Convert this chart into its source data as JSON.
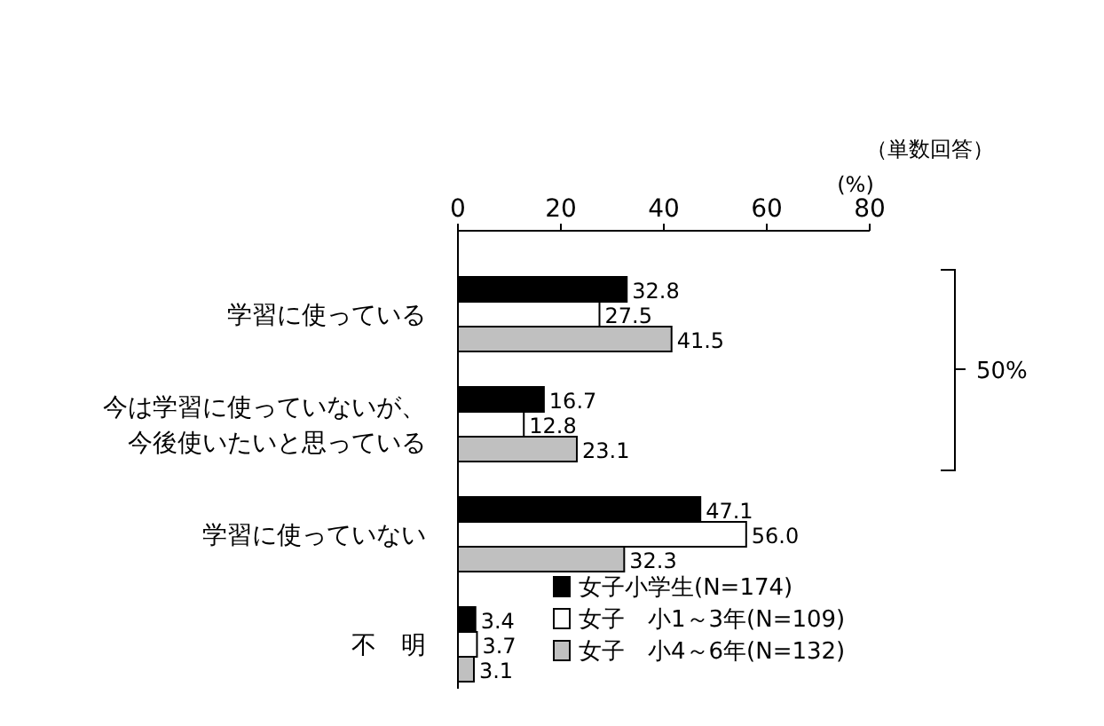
{
  "chart_data": {
    "type": "bar",
    "orientation": "horizontal",
    "categories": [
      "学習に使っている",
      "今は学習に使っていないが、今後使いたいと思っている",
      "学習に使っていない",
      "不　明"
    ],
    "series": [
      {
        "name": "女子小学生(N=174)",
        "color": "#000000",
        "values": [
          32.8,
          16.7,
          47.1,
          3.4
        ],
        "value_labels": [
          "32.8",
          "16.7",
          "47.1",
          "3.4"
        ]
      },
      {
        "name": "女子　小1～3年(N=109)",
        "color": "#ffffff",
        "values": [
          27.5,
          12.8,
          56.0,
          3.7
        ],
        "value_labels": [
          "27.5",
          "12.8",
          "56.0",
          "3.7"
        ]
      },
      {
        "name": "女子　小4～6年(N=132)",
        "color": "#c0c0c0",
        "values": [
          41.5,
          23.1,
          32.3,
          3.1
        ],
        "value_labels": [
          "41.5",
          "23.1",
          "32.3",
          "3.1"
        ]
      }
    ],
    "xlim": [
      0,
      80
    ],
    "xticks": [
      0,
      20,
      40,
      60,
      80
    ],
    "xlabel": "(%)",
    "legend": "bottom right",
    "annotations": [
      "（単数回答）",
      "50%"
    ]
  }
}
